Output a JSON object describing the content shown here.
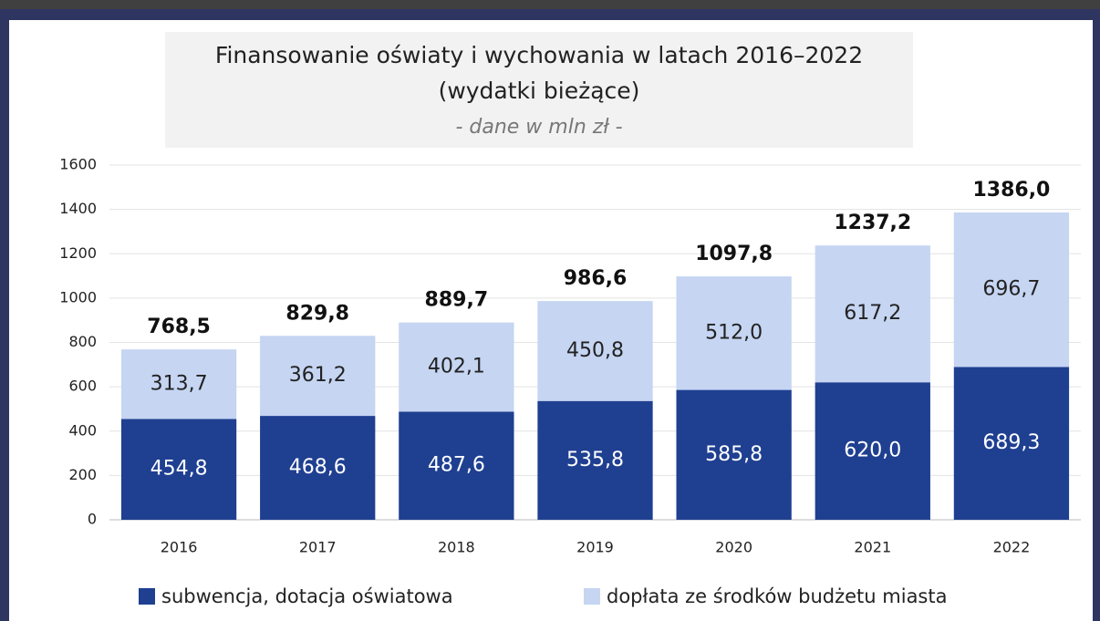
{
  "chart_data": {
    "type": "stacked_bar",
    "title": [
      "Finansowanie oświaty i wychowania w latach 2016–2022",
      "(wydatki bieżące)"
    ],
    "subtitle": "- dane w mln zł -",
    "categories": [
      "2016",
      "2017",
      "2018",
      "2019",
      "2020",
      "2021",
      "2022"
    ],
    "series": [
      {
        "name": "subwencja, dotacja oświatowa",
        "color": "#1f3f91",
        "values": [
          454.8,
          468.6,
          487.6,
          535.8,
          585.8,
          620.0,
          689.3
        ],
        "value_labels": [
          "454,8",
          "468,6",
          "487,6",
          "535,8",
          "585,8",
          "620,0",
          "689,3"
        ]
      },
      {
        "name": "dopłata ze środków budżetu miasta",
        "color": "#c5d5f2",
        "values": [
          313.7,
          361.2,
          402.1,
          450.8,
          512.0,
          617.2,
          696.7
        ],
        "value_labels": [
          "313,7",
          "361,2",
          "402,1",
          "450,8",
          "512,0",
          "617,2",
          "696,7"
        ]
      }
    ],
    "totals": {
      "values": [
        768.5,
        829.8,
        889.7,
        986.6,
        1097.8,
        1237.2,
        1386.0
      ],
      "value_labels": [
        "768,5",
        "829,8",
        "889,7",
        "986,6",
        "1097,8",
        "1237,2",
        "1386,0"
      ]
    },
    "ylim": [
      0,
      1600
    ],
    "yticks": [
      0,
      200,
      400,
      600,
      800,
      1000,
      1200,
      1400,
      1600
    ],
    "grid": true,
    "legend": "bottom"
  }
}
